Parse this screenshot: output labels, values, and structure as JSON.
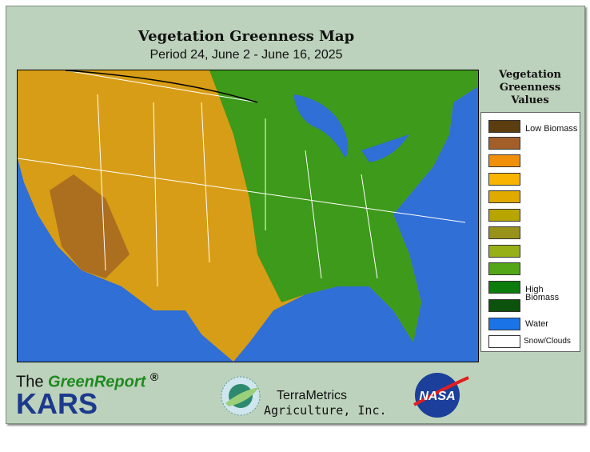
{
  "header": {
    "title": "Vegetation Greenness Map",
    "subtitle": "Period 24, June 2 - June 16, 2025"
  },
  "legend": {
    "title": "Vegetation Greenness Values",
    "items": [
      {
        "color": "#5c3d10",
        "label": "Low Biomass"
      },
      {
        "color": "#a35e2a"
      },
      {
        "color": "#f0900a"
      },
      {
        "color": "#f8b400"
      },
      {
        "color": "#e0aa00"
      },
      {
        "color": "#b8a600"
      },
      {
        "color": "#98921a"
      },
      {
        "color": "#98b018"
      },
      {
        "color": "#52a618"
      },
      {
        "color": "#0c7c0c",
        "label": "High Biomass"
      },
      {
        "color": "#0c520c"
      },
      {
        "color": "#1a74e8",
        "label": "Water"
      },
      {
        "color": "#ffffff",
        "label": "Snow/Clouds"
      }
    ]
  },
  "footer": {
    "brand_prefix": "The",
    "brand_name": "GreenReport",
    "brand_mark": "®",
    "org": "KARS",
    "partner_line1": "TerraMetrics",
    "partner_line2": "Agriculture, Inc.",
    "agency": "NASA"
  }
}
